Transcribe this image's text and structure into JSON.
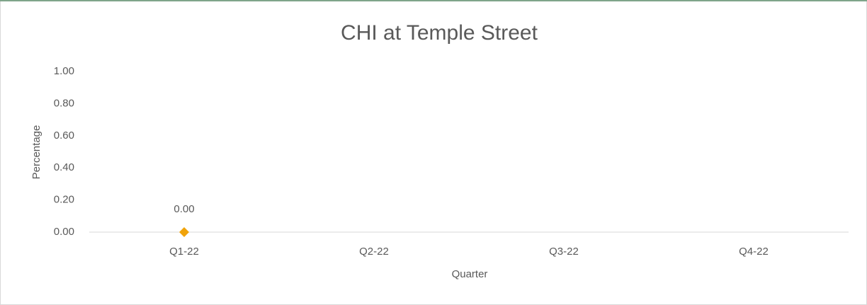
{
  "chart_data": {
    "type": "line",
    "title": "CHI at Temple Street",
    "x_label": "Quarter",
    "y_label": "Percentage",
    "categories": [
      "Q1-22",
      "Q2-22",
      "Q3-22",
      "Q4-22"
    ],
    "series": [
      {
        "name": "CHI",
        "color": "#f0a30a",
        "values": [
          0,
          null,
          null,
          null
        ],
        "value_labels": [
          "0.00",
          null,
          null,
          null
        ]
      }
    ],
    "ylim": [
      0,
      1
    ],
    "yticks": [
      {
        "value": 0,
        "label": "0.00"
      },
      {
        "value": 0.2,
        "label": "0.20"
      },
      {
        "value": 0.4,
        "label": "0.40"
      },
      {
        "value": 0.6,
        "label": "0.60"
      },
      {
        "value": 0.8,
        "label": "0.80"
      },
      {
        "value": 1,
        "label": "1.00"
      }
    ],
    "grid": false,
    "marker": "diamond"
  }
}
